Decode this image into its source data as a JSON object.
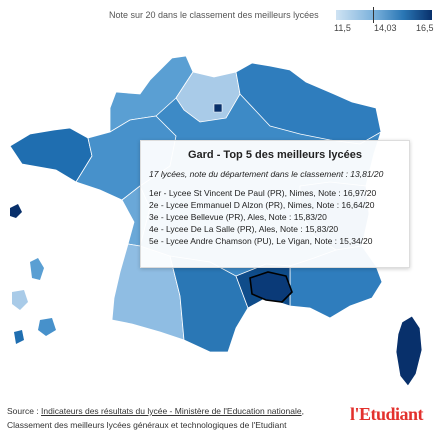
{
  "legend": {
    "title": "Note sur 20 dans le classement des meilleurs lycées",
    "ticks": [
      "11,5",
      "14,03",
      "16,5"
    ]
  },
  "tooltip": {
    "title": "Gard - Top 5 des meilleurs lycées",
    "summary": "17 lycées, note du département dans le classement : 13,81/20",
    "rows": [
      "1er - Lycee St Vincent De Paul (PR), Nimes, Note : 16,97/20",
      "2e - Lycee Emmanuel D Alzon (PR), Nimes, Note : 16,64/20",
      "3e - Lycee Bellevue (PR), Ales, Note : 15,83/20",
      "4e - Lycee De La Salle (PR), Ales, Note : 15,83/20",
      "5e - Lycee Andre Chamson (PU), Le Vigan, Note : 15,34/20"
    ]
  },
  "footer": {
    "source_prefix": "Source : ",
    "source_link": "Indicateurs des résultats du lycée - Ministère de l'Education nationale",
    "source_suffix": ",",
    "line2": "Classement des meilleurs lycées généraux et technologiques de l'Etudiant",
    "logo": "l'Etudiant"
  },
  "colors": {
    "low": "#cfe3f3",
    "mid": "#2a77b5",
    "high": "#08306b",
    "highlight_border": "#000000",
    "logo": "#e3312d"
  }
}
